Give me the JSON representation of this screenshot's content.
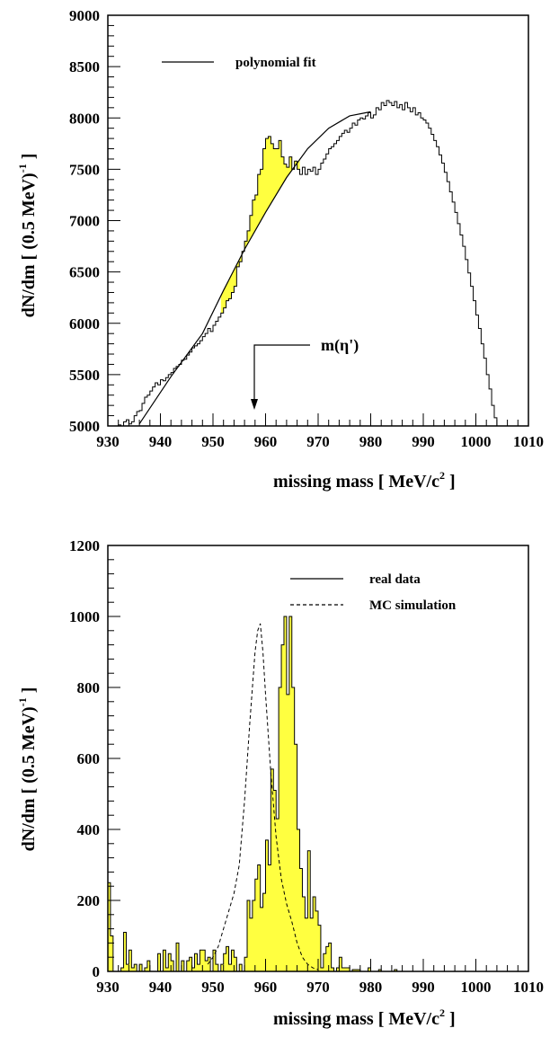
{
  "chart_data": [
    {
      "type": "histogram",
      "xlabel": "missing mass [ MeV/c",
      "xlabel_sup": "2",
      "xlabel_end": " ]",
      "ylabel": "dN/dm [ (0.5 MeV)",
      "ylabel_sup": "-1",
      "ylabel_end": " ]",
      "xlim": [
        930,
        1010
      ],
      "ylim": [
        5000,
        9000
      ],
      "xticks": [
        "930",
        "940",
        "950",
        "960",
        "970",
        "980",
        "990",
        "1000",
        "1010"
      ],
      "yticks": [
        "5000",
        "5500",
        "6000",
        "6500",
        "7000",
        "7500",
        "8000",
        "8500",
        "9000"
      ],
      "legend": [
        {
          "label": "polynomial fit",
          "style": "solid"
        }
      ],
      "annotation": {
        "text": "m(η')",
        "x": 958
      },
      "fill_color": "#ffff40",
      "fill_range": [
        951.5,
        966.5
      ],
      "series": [
        {
          "name": "",
          "binwidth": 0.5,
          "x0": 930,
          "values": [
            4900,
            4900,
            4930,
            4970,
            5010,
            5000,
            5040,
            5060,
            5020,
            5040,
            5100,
            5140,
            5150,
            5220,
            5280,
            5300,
            5340,
            5380,
            5420,
            5400,
            5450,
            5440,
            5470,
            5500,
            5520,
            5560,
            5580,
            5600,
            5640,
            5650,
            5690,
            5720,
            5760,
            5780,
            5800,
            5830,
            5870,
            5900,
            5950,
            5920,
            5980,
            6020,
            6060,
            6100,
            6150,
            6220,
            6240,
            6300,
            6360,
            6550,
            6600,
            6700,
            6800,
            6900,
            7050,
            7200,
            7250,
            7450,
            7500,
            7700,
            7800,
            7820,
            7750,
            7700,
            7700,
            7780,
            7620,
            7550,
            7520,
            7620,
            7500,
            7580,
            7500,
            7450,
            7520,
            7450,
            7500,
            7480,
            7520,
            7450,
            7500,
            7560,
            7600,
            7650,
            7700,
            7720,
            7750,
            7780,
            7820,
            7850,
            7880,
            7860,
            7900,
            7950,
            7930,
            7980,
            8000,
            7990,
            8020,
            8050,
            8000,
            8030,
            8100,
            8080,
            8150,
            8120,
            8170,
            8150,
            8120,
            8160,
            8100,
            8130,
            8080,
            8150,
            8100,
            8060,
            8100,
            8030,
            8050,
            8000,
            7980,
            7950,
            7900,
            7840,
            7780,
            7720,
            7640,
            7560,
            7470,
            7380,
            7280,
            7180,
            7080,
            6970,
            6860,
            6750,
            6620,
            6490,
            6360,
            6220,
            6080,
            5950,
            5800,
            5660,
            5500,
            5360,
            5200,
            5080,
            4960,
            4900,
            4900,
            4900,
            4900,
            4900,
            4900,
            4900,
            4900,
            4900,
            4900,
            4900
          ]
        },
        {
          "name": "polynomial fit",
          "type": "line",
          "x": [
            936,
            942,
            948,
            952,
            956,
            960,
            964,
            968,
            972,
            976,
            980
          ],
          "values": [
            5020,
            5480,
            5900,
            6320,
            6720,
            7080,
            7420,
            7700,
            7900,
            8020,
            8060
          ]
        }
      ]
    },
    {
      "type": "histogram",
      "xlabel": "missing mass [ MeV/c",
      "xlabel_sup": "2",
      "xlabel_end": " ]",
      "ylabel": "dN/dm [ (0.5 MeV)",
      "ylabel_sup": "-1",
      "ylabel_end": " ]",
      "xlim": [
        930,
        1010
      ],
      "ylim": [
        0,
        1200
      ],
      "xticks": [
        "930",
        "940",
        "950",
        "960",
        "970",
        "980",
        "990",
        "1000",
        "1010"
      ],
      "yticks": [
        "0",
        "200",
        "400",
        "600",
        "800",
        "1000",
        "1200"
      ],
      "legend": [
        {
          "label": "real data",
          "style": "solid"
        },
        {
          "label": "MC simulation",
          "style": "dashed"
        }
      ],
      "fill_color": "#ffff40",
      "series": [
        {
          "name": "real data",
          "binwidth": 0.5,
          "x0": 930,
          "values": [
            250,
            100,
            0,
            0,
            0,
            10,
            110,
            20,
            60,
            10,
            20,
            0,
            20,
            0,
            10,
            30,
            0,
            0,
            0,
            50,
            0,
            60,
            10,
            50,
            30,
            0,
            80,
            0,
            30,
            0,
            30,
            40,
            10,
            50,
            20,
            60,
            60,
            30,
            40,
            0,
            60,
            20,
            0,
            20,
            50,
            70,
            20,
            60,
            40,
            0,
            20,
            0,
            40,
            200,
            150,
            200,
            260,
            300,
            180,
            220,
            370,
            300,
            570,
            510,
            430,
            800,
            920,
            1000,
            780,
            1000,
            800,
            640,
            400,
            290,
            210,
            150,
            340,
            150,
            210,
            170,
            130,
            10,
            50,
            70,
            80,
            10,
            0,
            10,
            40,
            10,
            10,
            10,
            0,
            5,
            5,
            5,
            0,
            0,
            0,
            10,
            0,
            0,
            0,
            5,
            0,
            0,
            0,
            0,
            0,
            5,
            0,
            0,
            0,
            0,
            0,
            0,
            0,
            0,
            0,
            0,
            0,
            0,
            0,
            0,
            0,
            0,
            0,
            0,
            0,
            0,
            0,
            0,
            0,
            0,
            0,
            0,
            0,
            0,
            0,
            0,
            0,
            0,
            0,
            0,
            0,
            0,
            0,
            0,
            0,
            0,
            0,
            0,
            0,
            0,
            0,
            0,
            0,
            0,
            0,
            0
          ]
        },
        {
          "name": "MC simulation",
          "type": "line",
          "dashed": true,
          "x": [
            949,
            950,
            951,
            952,
            953,
            954,
            955,
            956,
            957,
            958,
            958.5,
            959,
            959.5,
            960,
            961,
            962,
            963,
            964,
            965,
            966,
            967,
            968,
            969,
            970
          ],
          "values": [
            20,
            40,
            70,
            120,
            170,
            220,
            300,
            480,
            700,
            900,
            960,
            980,
            900,
            780,
            560,
            380,
            260,
            190,
            140,
            80,
            40,
            20,
            10,
            5
          ]
        }
      ]
    }
  ]
}
